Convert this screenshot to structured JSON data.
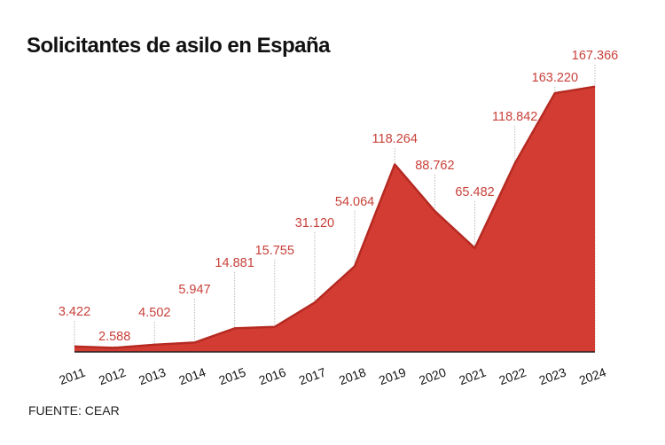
{
  "chart_data": {
    "type": "area",
    "title": "Solicitantes de asilo en España",
    "source": "FUENTE: CEAR",
    "xlabel": "",
    "ylabel": "",
    "ylim": [
      0,
      175000
    ],
    "grid": false,
    "legend": "none",
    "color": "#d33c32",
    "line_color": "#b52a22",
    "label_color": "#c8413a",
    "categories": [
      "2011",
      "2012",
      "2013",
      "2014",
      "2015",
      "2016",
      "2017",
      "2018",
      "2019",
      "2020",
      "2021",
      "2022",
      "2023",
      "2024"
    ],
    "values": [
      3422,
      2588,
      4502,
      5947,
      14881,
      15755,
      31120,
      54064,
      118264,
      88762,
      65482,
      118842,
      163220,
      167366
    ],
    "data_labels": [
      "3.422",
      "2.588",
      "4.502",
      "5.947",
      "14.881",
      "15.755",
      "31.120",
      "54.064",
      "118.264",
      "88.762",
      "65.482",
      "118.842",
      "163.220",
      "167.366"
    ]
  }
}
